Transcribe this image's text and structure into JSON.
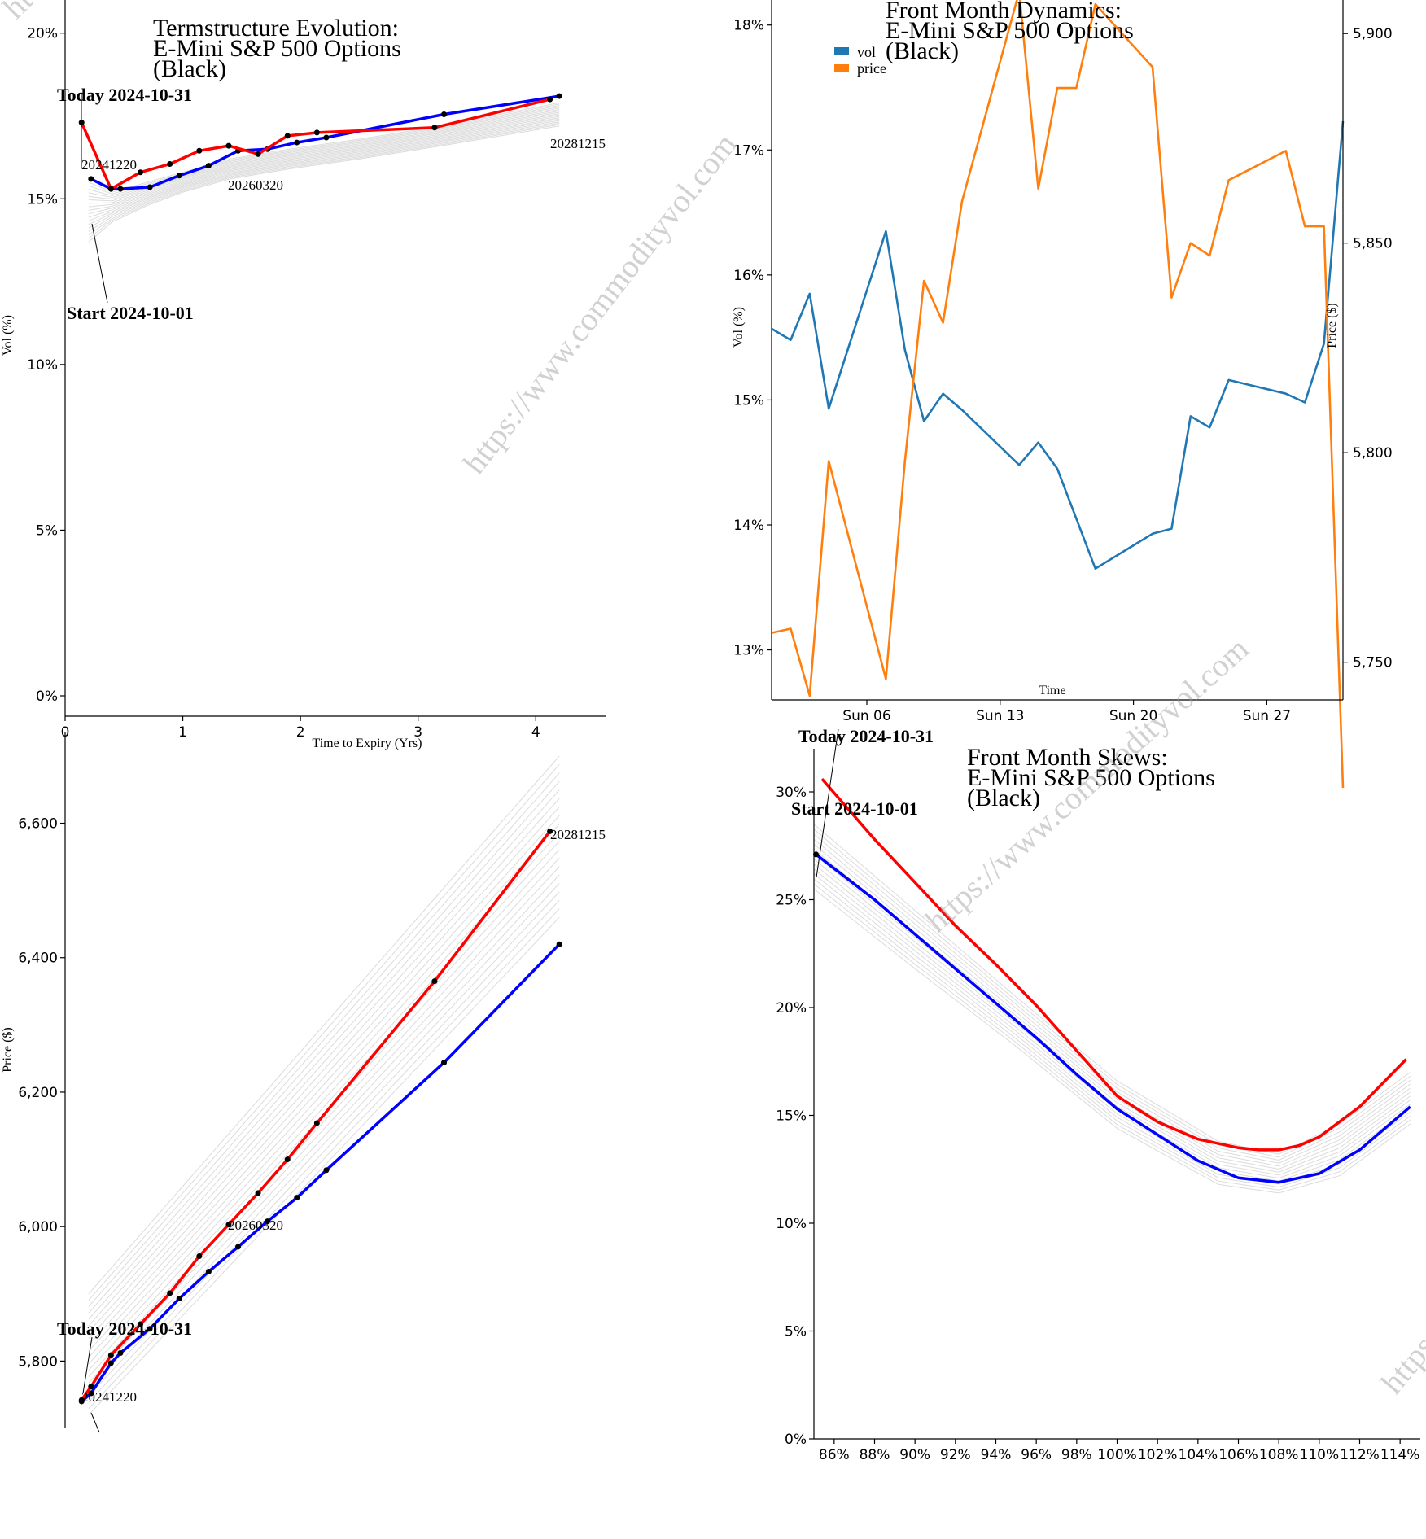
{
  "watermark": "https://www.commodityvol.com",
  "chart_data": [
    {
      "id": "termstructure",
      "type": "line",
      "title": [
        "Termstructure Evolution:",
        "E-Mini S&P 500 Options",
        "(Black)"
      ],
      "xlabel": "Time to Expiry (Yrs)",
      "ylabel": "Vol (%)",
      "xlim": [
        0,
        4.6
      ],
      "ylim": [
        0,
        21
      ],
      "xticks": [
        0,
        1,
        2,
        3,
        4
      ],
      "xtick_labels": [
        "0",
        "1",
        "2",
        "3",
        "4"
      ],
      "yticks": [
        0,
        5,
        10,
        15,
        20
      ],
      "ytick_labels": [
        "0%",
        "5%",
        "10%",
        "15%",
        "20%"
      ],
      "colors": {
        "today": "#ff0000",
        "start": "#0000ff",
        "history": "#cccccc",
        "marker": "#000000"
      },
      "series": [
        {
          "role": "today",
          "x": [
            0.14,
            0.39,
            0.64,
            0.89,
            1.14,
            1.39,
            1.64,
            1.89,
            2.14,
            3.14,
            4.12
          ],
          "y": [
            17.3,
            15.3,
            15.8,
            16.05,
            16.45,
            16.6,
            16.35,
            16.9,
            17.0,
            17.15,
            18.0
          ]
        },
        {
          "role": "start",
          "x": [
            0.22,
            0.39,
            0.47,
            0.72,
            0.97,
            1.22,
            1.47,
            1.72,
            1.97,
            2.22,
            3.22,
            4.2
          ],
          "y": [
            15.6,
            15.3,
            15.3,
            15.35,
            15.7,
            16.0,
            16.45,
            16.5,
            16.7,
            16.85,
            17.55,
            18.1
          ]
        }
      ],
      "history_band": {
        "x": [
          0.2,
          0.4,
          0.7,
          1.0,
          1.4,
          1.9,
          2.5,
          3.2,
          4.2
        ],
        "low": [
          13.7,
          14.3,
          14.8,
          15.2,
          15.6,
          15.9,
          16.2,
          16.6,
          17.2
        ],
        "high": [
          15.5,
          15.2,
          15.5,
          15.8,
          16.2,
          16.5,
          16.8,
          17.2,
          17.9
        ]
      },
      "annotations": {
        "today": "Today 2024-10-31",
        "start": "Start 2024-10-01",
        "labels": [
          "20241220",
          "20260320",
          "20281215"
        ]
      }
    },
    {
      "id": "front-month-dynamics",
      "type": "line",
      "title": [
        "Front Month Dynamics:",
        "E-Mini S&P 500 Options",
        "(Black)"
      ],
      "xlabel": "Time",
      "ylabel": "Vol (%)",
      "y2label": "Price ($)",
      "ylim": [
        12.6,
        18.2
      ],
      "y2lim": [
        5741,
        5908
      ],
      "yticks": [
        13,
        14,
        15,
        16,
        17,
        18
      ],
      "ytick_labels": [
        "13%",
        "14%",
        "15%",
        "16%",
        "17%",
        "18%"
      ],
      "y2ticks": [
        5750,
        5800,
        5850,
        5900
      ],
      "y2tick_labels": [
        "5,750",
        "5,800",
        "5,850",
        "5,900"
      ],
      "xlim": [
        1,
        31
      ],
      "xticks": [
        6,
        13,
        20,
        27
      ],
      "xtick_labels": [
        "Sun 06",
        "Sun 13",
        "Sun 20",
        "Sun 27"
      ],
      "legend": {
        "position": "top-left",
        "entries": [
          "vol",
          "price"
        ]
      },
      "colors": {
        "vol": "#1f77b4",
        "price": "#ff7f0e"
      },
      "series": [
        {
          "name": "vol",
          "axis": "left",
          "x": [
            1,
            2,
            3,
            4,
            7,
            8,
            9,
            10,
            11,
            14,
            15,
            16,
            18,
            21,
            22,
            23,
            24,
            25,
            28,
            29,
            30,
            31
          ],
          "y": [
            15.57,
            15.48,
            15.85,
            14.93,
            16.35,
            15.4,
            14.83,
            15.05,
            14.92,
            14.48,
            14.66,
            14.45,
            13.65,
            13.93,
            13.97,
            14.87,
            14.78,
            15.16,
            15.05,
            14.98,
            15.45,
            17.23
          ]
        },
        {
          "name": "price",
          "axis": "right",
          "x": [
            1,
            2,
            3,
            4,
            7,
            8,
            9,
            10,
            11,
            14,
            15,
            16,
            17,
            18,
            21,
            22,
            23,
            24,
            25,
            28,
            29,
            30,
            31
          ],
          "y": [
            5757,
            5758,
            5742,
            5798,
            5746,
            5798,
            5841,
            5831,
            5860,
            5910,
            5863,
            5887,
            5887,
            5907,
            5892,
            5837,
            5850,
            5847,
            5865,
            5872,
            5854,
            5854,
            5720
          ]
        }
      ]
    },
    {
      "id": "price-termstructure",
      "type": "line",
      "title": "",
      "xlabel": "",
      "ylabel": "Price ($)",
      "xlim": [
        0,
        4.6
      ],
      "ylim": [
        5700,
        6735
      ],
      "yticks": [
        5800,
        6000,
        6200,
        6400,
        6600
      ],
      "ytick_labels": [
        "5,800",
        "6,000",
        "6,200",
        "6,400",
        "6,600"
      ],
      "colors": {
        "today": "#ff0000",
        "start": "#0000ff",
        "history": "#cccccc",
        "marker": "#000000"
      },
      "series": [
        {
          "role": "today",
          "x": [
            0.14,
            0.22,
            0.39,
            0.64,
            0.89,
            1.14,
            1.39,
            1.64,
            1.89,
            2.14,
            3.14,
            4.12
          ],
          "y": [
            5742,
            5762,
            5809,
            5855,
            5901,
            5956,
            6003,
            6050,
            6100,
            6154,
            6365,
            6588
          ]
        },
        {
          "role": "start",
          "x": [
            0.14,
            0.22,
            0.39,
            0.47,
            0.72,
            0.97,
            1.22,
            1.47,
            1.72,
            1.97,
            2.22,
            3.22,
            4.2
          ],
          "y": [
            5740,
            5752,
            5797,
            5812,
            5848,
            5893,
            5933,
            5970,
            6008,
            6043,
            6084,
            6244,
            6420
          ]
        }
      ],
      "history_band": {
        "x": [
          0.2,
          4.2
        ],
        "low": [
          5720,
          6460
        ],
        "high": [
          5900,
          6700
        ]
      },
      "annotations": {
        "today": "Today 2024-10-31",
        "labels": [
          "20241220",
          "20260320",
          "20281215"
        ]
      }
    },
    {
      "id": "front-month-skews",
      "type": "line",
      "title": [
        "Front Month Skews:",
        "E-Mini S&P 500 Options",
        "(Black)"
      ],
      "xlabel": "",
      "ylabel": "",
      "xlim": [
        85,
        115
      ],
      "ylim": [
        0,
        32
      ],
      "xticks": [
        86,
        88,
        90,
        92,
        94,
        96,
        98,
        100,
        102,
        104,
        106,
        108,
        110,
        112,
        114
      ],
      "xtick_labels": [
        "86%",
        "88%",
        "90%",
        "92%",
        "94%",
        "96%",
        "98%",
        "100%",
        "102%",
        "104%",
        "106%",
        "108%",
        "110%",
        "112%",
        "114%"
      ],
      "yticks": [
        0,
        5,
        10,
        15,
        20,
        25,
        30
      ],
      "ytick_labels": [
        "0%",
        "5%",
        "10%",
        "15%",
        "20%",
        "25%",
        "30%"
      ],
      "colors": {
        "today": "#ff0000",
        "start": "#0000ff",
        "history": "#cccccc"
      },
      "series": [
        {
          "role": "today",
          "x": [
            85.4,
            88,
            90,
            92,
            94,
            96,
            98,
            100,
            102,
            104,
            106,
            107,
            108,
            109,
            110,
            112,
            114.3
          ],
          "y": [
            30.6,
            27.8,
            25.8,
            23.8,
            22.0,
            20.1,
            18.0,
            15.9,
            14.7,
            13.9,
            13.5,
            13.4,
            13.4,
            13.6,
            14.0,
            15.4,
            17.6
          ]
        },
        {
          "role": "start",
          "x": [
            85.1,
            88,
            90,
            92,
            94,
            96,
            98,
            100,
            102,
            104,
            106,
            108,
            110,
            112,
            114.5
          ],
          "y": [
            27.1,
            25.0,
            23.4,
            21.8,
            20.2,
            18.6,
            16.9,
            15.3,
            14.1,
            12.9,
            12.1,
            11.9,
            12.3,
            13.4,
            15.4
          ]
        }
      ],
      "history_band": {
        "x": [
          85,
          90,
          95,
          100,
          105,
          108,
          111,
          114.5
        ],
        "low": [
          25.5,
          21.8,
          18.2,
          14.4,
          11.8,
          11.4,
          12.2,
          14.6
        ],
        "high": [
          28.5,
          24.5,
          20.5,
          16.6,
          13.8,
          13.2,
          14.6,
          17.0
        ]
      },
      "annotations": {
        "today": "Today 2024-10-31",
        "start": "Start 2024-10-01"
      }
    }
  ]
}
